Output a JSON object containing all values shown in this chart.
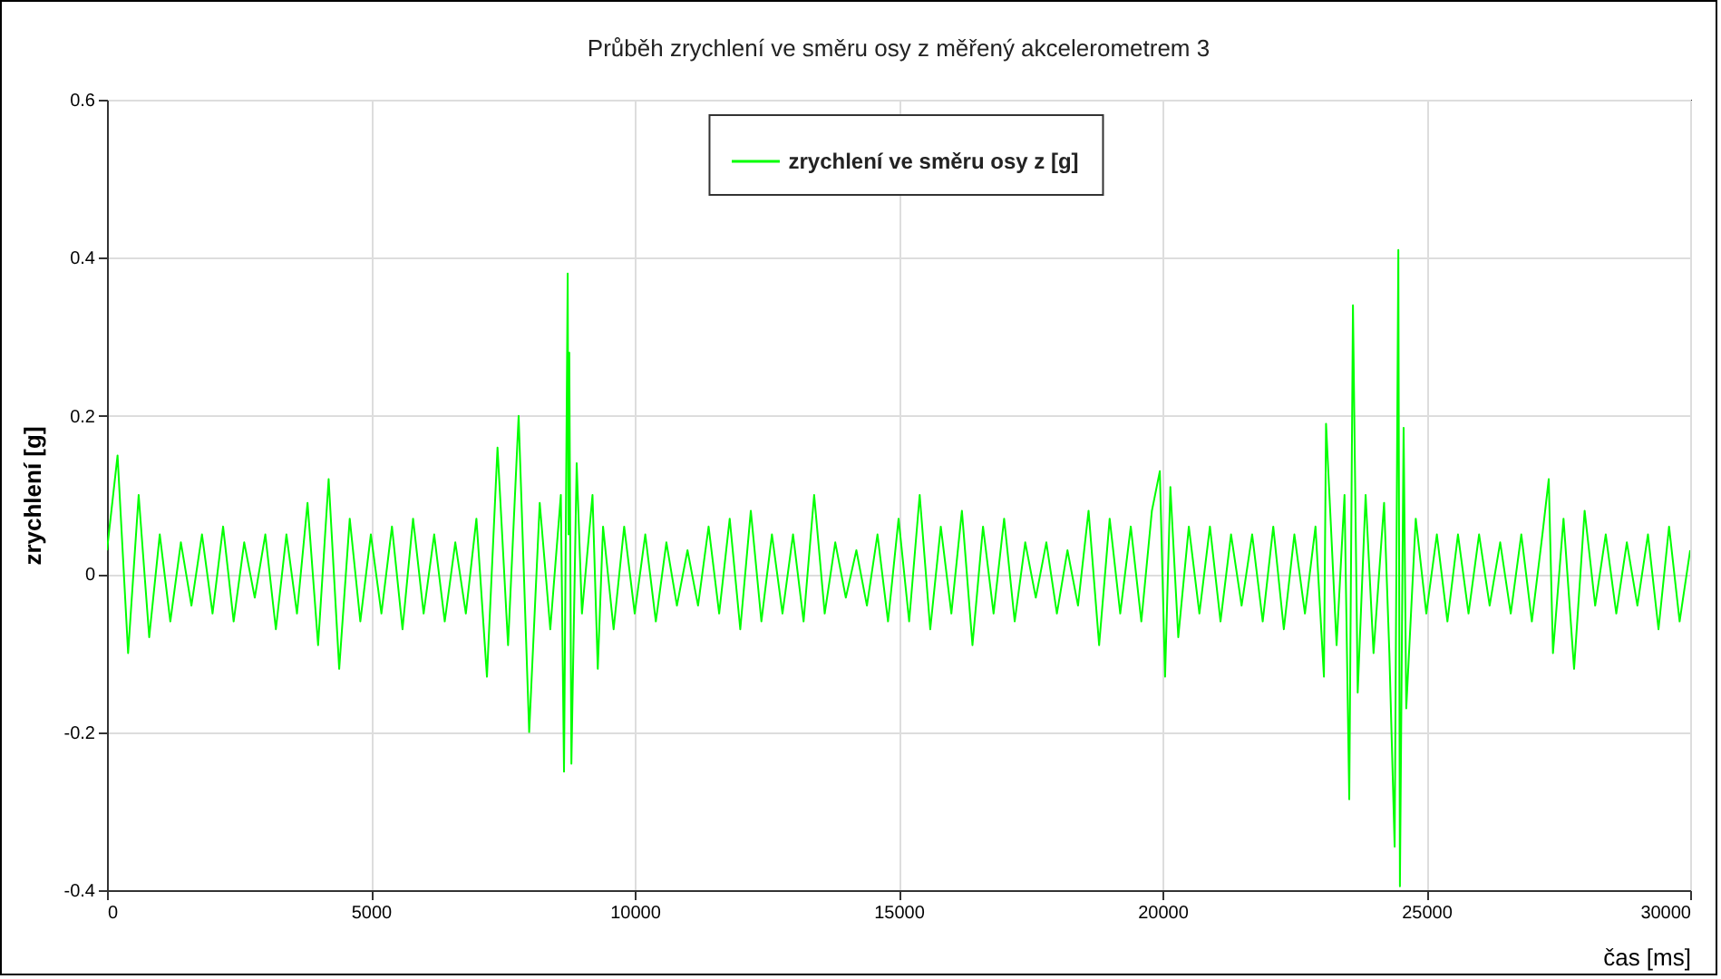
{
  "chart_data": {
    "type": "line",
    "title": "Průběh zrychlení ve směru osy z měřený akcelerometrem 3",
    "xlabel": "čas [ms]",
    "ylabel": "zrychlení [g]",
    "x": [
      0,
      200,
      400,
      600,
      800,
      1000,
      1200,
      1400,
      1600,
      1800,
      2000,
      2200,
      2400,
      2600,
      2800,
      3000,
      3200,
      3400,
      3600,
      3800,
      4000,
      4200,
      4400,
      4600,
      4800,
      5000,
      5200,
      5400,
      5600,
      5800,
      6000,
      6200,
      6400,
      6600,
      6800,
      7000,
      7200,
      7400,
      7600,
      7800,
      8000,
      8200,
      8400,
      8600,
      8660,
      8730,
      8745,
      8760,
      8800,
      8900,
      9000,
      9200,
      9300,
      9400,
      9600,
      9800,
      10000,
      10200,
      10400,
      10600,
      10800,
      11000,
      11200,
      11400,
      11600,
      11800,
      12000,
      12200,
      12400,
      12600,
      12800,
      13000,
      13200,
      13400,
      13600,
      13800,
      14000,
      14200,
      14400,
      14600,
      14800,
      15000,
      15200,
      15400,
      15600,
      15800,
      16000,
      16200,
      16400,
      16600,
      16800,
      17000,
      17200,
      17400,
      17600,
      17800,
      18000,
      18200,
      18400,
      18600,
      18800,
      19000,
      19200,
      19400,
      19600,
      19800,
      19950,
      20050,
      20150,
      20300,
      20500,
      20700,
      20900,
      21100,
      21300,
      21500,
      21700,
      21900,
      22100,
      22300,
      22500,
      22700,
      22900,
      23060,
      23100,
      23300,
      23450,
      23540,
      23610,
      23700,
      23850,
      24000,
      24200,
      24300,
      24400,
      24470,
      24500,
      24570,
      24620,
      24800,
      25000,
      25200,
      25400,
      25600,
      25800,
      26000,
      26200,
      26400,
      26600,
      26800,
      27000,
      27200,
      27320,
      27400,
      27600,
      27800,
      28000,
      28200,
      28400,
      28600,
      28800,
      29000,
      29200,
      29400,
      29600,
      29800,
      30000
    ],
    "series": [
      {
        "name": "zrychlení ve směru osy z [g]",
        "color": "#00ff00",
        "values": [
          0.03,
          0.15,
          -0.1,
          0.1,
          -0.08,
          0.05,
          -0.06,
          0.04,
          -0.04,
          0.05,
          -0.05,
          0.06,
          -0.06,
          0.04,
          -0.03,
          0.05,
          -0.07,
          0.05,
          -0.05,
          0.09,
          -0.09,
          0.12,
          -0.12,
          0.07,
          -0.06,
          0.05,
          -0.05,
          0.06,
          -0.07,
          0.07,
          -0.05,
          0.05,
          -0.06,
          0.04,
          -0.05,
          0.07,
          -0.13,
          0.16,
          -0.09,
          0.2,
          -0.2,
          0.09,
          -0.07,
          0.1,
          -0.25,
          0.38,
          0.05,
          0.28,
          -0.24,
          0.14,
          -0.05,
          0.1,
          -0.12,
          0.06,
          -0.07,
          0.06,
          -0.05,
          0.05,
          -0.06,
          0.04,
          -0.04,
          0.03,
          -0.04,
          0.06,
          -0.05,
          0.07,
          -0.07,
          0.08,
          -0.06,
          0.05,
          -0.05,
          0.05,
          -0.06,
          0.1,
          -0.05,
          0.04,
          -0.03,
          0.03,
          -0.04,
          0.05,
          -0.06,
          0.07,
          -0.06,
          0.1,
          -0.07,
          0.06,
          -0.05,
          0.08,
          -0.09,
          0.06,
          -0.05,
          0.07,
          -0.06,
          0.04,
          -0.03,
          0.04,
          -0.05,
          0.03,
          -0.04,
          0.08,
          -0.09,
          0.07,
          -0.05,
          0.06,
          -0.06,
          0.08,
          0.13,
          -0.13,
          0.11,
          -0.08,
          0.06,
          -0.05,
          0.06,
          -0.06,
          0.05,
          -0.04,
          0.05,
          -0.06,
          0.06,
          -0.07,
          0.05,
          -0.05,
          0.06,
          -0.13,
          0.19,
          -0.09,
          0.1,
          -0.285,
          0.34,
          -0.15,
          0.1,
          -0.1,
          0.09,
          -0.1,
          -0.345,
          0.41,
          -0.395,
          0.185,
          -0.17,
          0.07,
          -0.05,
          0.05,
          -0.06,
          0.05,
          -0.05,
          0.05,
          -0.04,
          0.04,
          -0.05,
          0.05,
          -0.06,
          0.05,
          0.12,
          -0.1,
          0.07,
          -0.12,
          0.08,
          -0.04,
          0.05,
          -0.05,
          0.04,
          -0.04,
          0.05,
          -0.07,
          0.06,
          -0.06,
          0.03
        ]
      }
    ],
    "xlim": [
      0,
      30000
    ],
    "xticks": [
      0,
      5000,
      10000,
      15000,
      20000,
      25000,
      30000
    ],
    "ylim": [
      -0.4,
      0.6
    ],
    "yticks": [
      -0.4,
      -0.2,
      0,
      0.2,
      0.4,
      0.6
    ],
    "grid": true,
    "legend": "top",
    "marker": "none",
    "line_style": "solid"
  }
}
